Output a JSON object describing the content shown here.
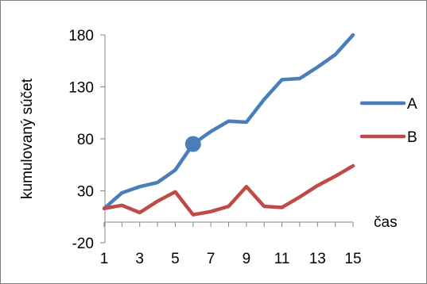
{
  "chart_data": {
    "type": "line",
    "title": "",
    "xlabel": "čas",
    "ylabel": "kumulovaný súčet",
    "x": [
      1,
      2,
      3,
      4,
      5,
      6,
      7,
      8,
      9,
      10,
      11,
      12,
      13,
      14,
      15
    ],
    "x_tick_labels": [
      "1",
      "3",
      "5",
      "7",
      "9",
      "11",
      "13",
      "15"
    ],
    "y_tick_labels": [
      "-20",
      "30",
      "80",
      "130",
      "180"
    ],
    "ylim": [
      -20,
      180
    ],
    "xlim": [
      1,
      15
    ],
    "grid": false,
    "legend_position": "right",
    "series": [
      {
        "name": "A",
        "color": "#4a7ebb",
        "values": [
          13,
          28,
          34,
          38,
          50,
          75,
          87,
          97,
          96,
          118,
          137,
          138,
          149,
          161,
          180
        ]
      },
      {
        "name": "B",
        "color": "#be4b48",
        "values": [
          13,
          16,
          9,
          20,
          29,
          7,
          10,
          15,
          34,
          15,
          14,
          24,
          35,
          44,
          54
        ]
      }
    ],
    "highlight_point": {
      "series": "A",
      "x": 6,
      "y": 75
    }
  }
}
